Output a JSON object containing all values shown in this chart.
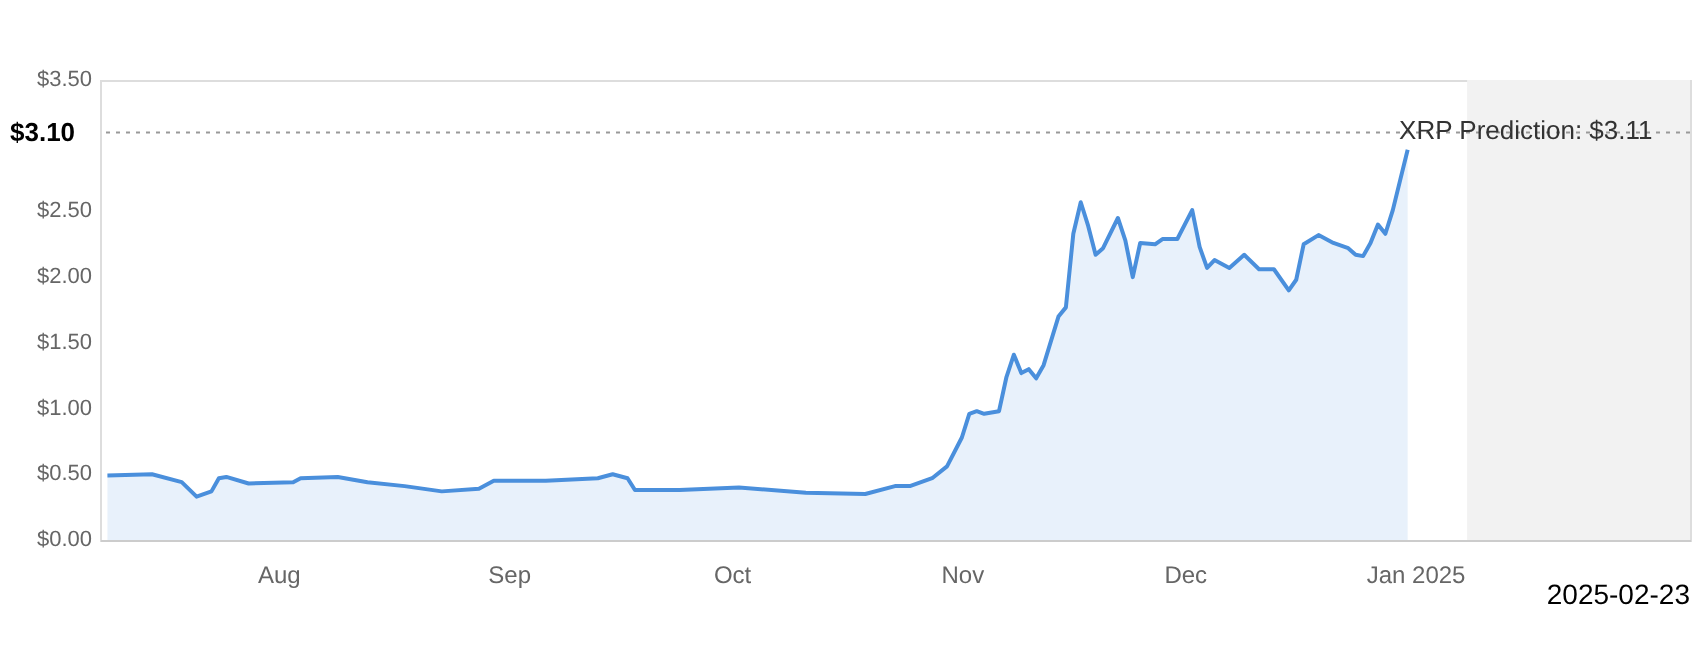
{
  "chart_data": {
    "type": "area",
    "x": [
      "2024-07-09",
      "2024-07-15",
      "2024-07-19",
      "2024-07-21",
      "2024-07-23",
      "2024-07-24",
      "2024-07-25",
      "2024-07-28",
      "2024-08-03",
      "2024-08-04",
      "2024-08-09",
      "2024-08-13",
      "2024-08-18",
      "2024-08-23",
      "2024-08-28",
      "2024-08-30",
      "2024-09-06",
      "2024-09-13",
      "2024-09-15",
      "2024-09-17",
      "2024-09-18",
      "2024-09-24",
      "2024-10-02",
      "2024-10-11",
      "2024-10-19",
      "2024-10-23",
      "2024-10-25",
      "2024-10-28",
      "2024-10-30",
      "2024-11-01",
      "2024-11-02",
      "2024-11-03",
      "2024-11-04",
      "2024-11-06",
      "2024-11-07",
      "2024-11-08",
      "2024-11-09",
      "2024-11-10",
      "2024-11-11",
      "2024-11-12",
      "2024-11-14",
      "2024-11-15",
      "2024-11-16",
      "2024-11-17",
      "2024-11-18",
      "2024-11-19",
      "2024-11-20",
      "2024-11-22",
      "2024-11-23",
      "2024-11-24",
      "2024-11-25",
      "2024-11-27",
      "2024-11-28",
      "2024-11-30",
      "2024-12-02",
      "2024-12-03",
      "2024-12-04",
      "2024-12-05",
      "2024-12-07",
      "2024-12-09",
      "2024-12-11",
      "2024-12-13",
      "2024-12-15",
      "2024-12-16",
      "2024-12-17",
      "2024-12-19",
      "2024-12-21",
      "2024-12-23",
      "2024-12-24",
      "2024-12-25",
      "2024-12-26",
      "2024-12-27",
      "2024-12-28",
      "2024-12-29",
      "2024-12-30",
      "2024-12-31"
    ],
    "series": [
      {
        "color": "#4a8fdc",
        "values": [
          0.49,
          0.5,
          0.44,
          0.33,
          0.37,
          0.47,
          0.48,
          0.43,
          0.44,
          0.47,
          0.48,
          0.44,
          0.41,
          0.37,
          0.39,
          0.45,
          0.45,
          0.47,
          0.5,
          0.47,
          0.38,
          0.38,
          0.4,
          0.36,
          0.35,
          0.41,
          0.41,
          0.47,
          0.56,
          0.78,
          0.96,
          0.98,
          0.96,
          0.98,
          1.24,
          1.41,
          1.27,
          1.3,
          1.23,
          1.33,
          1.7,
          1.77,
          2.33,
          2.57,
          2.39,
          2.17,
          2.22,
          2.45,
          2.28,
          2.0,
          2.26,
          2.25,
          2.29,
          2.29,
          2.51,
          2.23,
          2.07,
          2.13,
          2.07,
          2.17,
          2.06,
          2.06,
          1.9,
          1.98,
          2.25,
          2.32,
          2.26,
          2.22,
          2.17,
          2.16,
          2.26,
          2.4,
          2.33,
          2.51,
          2.74,
          2.97
        ]
      }
    ],
    "xlim": [
      "2024-07-08",
      "2025-02-07"
    ],
    "xticks": [
      {
        "value": "2024-08-01",
        "label": "Aug"
      },
      {
        "value": "2024-09-01",
        "label": "Sep"
      },
      {
        "value": "2024-10-01",
        "label": "Oct"
      },
      {
        "value": "2024-11-01",
        "label": "Nov"
      },
      {
        "value": "2024-12-01",
        "label": "Dec"
      },
      {
        "value": "2025-01-01",
        "label": "Jan 2025"
      }
    ],
    "ylim": [
      0,
      3.5
    ],
    "yticks": [
      {
        "value": 0,
        "label": "$0.00"
      },
      {
        "value": 0.5,
        "label": "$0.50"
      },
      {
        "value": 1,
        "label": "$1.00"
      },
      {
        "value": 1.5,
        "label": "$1.50"
      },
      {
        "value": 2,
        "label": "$2.00"
      },
      {
        "value": 2.5,
        "label": "$2.50"
      },
      {
        "value": 3.5,
        "label": "$3.50"
      }
    ],
    "grid": false,
    "ref_lines": [
      {
        "axis": "y",
        "value": 3.1,
        "label": "$3.10",
        "color": "#999999",
        "line_style": "dotted"
      }
    ],
    "bands": [
      {
        "axis": "x",
        "from": "2025-01-08",
        "to": "2025-02-07",
        "color": "#f2f2f2"
      }
    ],
    "annotations": [
      {
        "text": "XRP Prediction: $3.11",
        "x": "2025-01-01",
        "y": 3.11
      },
      "2025-02-23"
    ]
  }
}
